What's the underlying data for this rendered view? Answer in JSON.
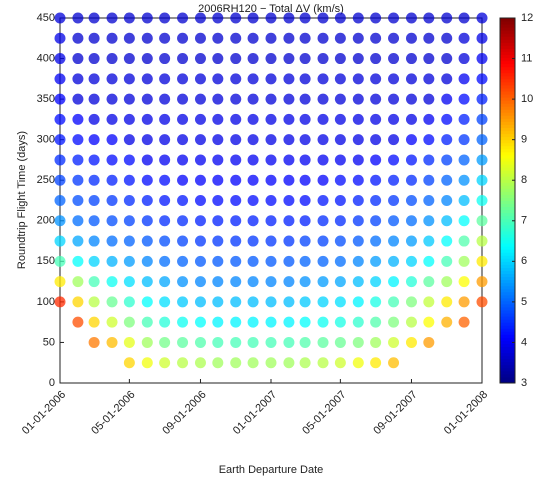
{
  "chart_data": {
    "type": "heatmap-scatter",
    "title": "2006RH120 − Total ΔV (km/s)",
    "x_label": "Earth Departure Date",
    "y_label": "Roundtrip Flight Time (days)",
    "colormap": "jet",
    "x": [
      "2006-01-01",
      "2006-02-01",
      "2006-03-01",
      "2006-04-01",
      "2006-05-01",
      "2006-06-01",
      "2006-07-01",
      "2006-08-01",
      "2006-09-01",
      "2006-10-01",
      "2006-11-01",
      "2006-12-01",
      "2007-01-01",
      "2007-02-01",
      "2007-03-01",
      "2007-04-01",
      "2007-05-01",
      "2007-06-01",
      "2007-07-01",
      "2007-08-01",
      "2007-09-01",
      "2007-10-01",
      "2007-11-01",
      "2007-12-01",
      "2008-01-01"
    ],
    "y": [
      25,
      50,
      75,
      100,
      125,
      150,
      175,
      200,
      225,
      250,
      275,
      300,
      325,
      350,
      375,
      400,
      425,
      450
    ],
    "z": [
      [
        null,
        null,
        null,
        null,
        9.0,
        8.5,
        8.2,
        8.0,
        7.9,
        7.8,
        7.8,
        7.8,
        7.8,
        7.8,
        7.9,
        8.0,
        8.2,
        8.5,
        8.8,
        9.2,
        null,
        null,
        null,
        null,
        null
      ],
      [
        null,
        null,
        9.8,
        9.2,
        8.4,
        7.8,
        7.4,
        7.2,
        7.1,
        7.0,
        7.0,
        7.0,
        7.0,
        7.0,
        7.1,
        7.2,
        7.3,
        7.5,
        7.8,
        8.2,
        8.8,
        9.5,
        null,
        null,
        null
      ],
      [
        null,
        10.2,
        9.0,
        8.2,
        7.5,
        7.0,
        6.7,
        6.5,
        6.4,
        6.3,
        6.3,
        6.3,
        6.3,
        6.3,
        6.4,
        6.5,
        6.6,
        6.8,
        7.1,
        7.5,
        8.0,
        8.6,
        9.3,
        10.0,
        null
      ],
      [
        10.5,
        9.0,
        8.0,
        7.3,
        6.8,
        6.4,
        6.1,
        5.9,
        5.8,
        5.8,
        5.8,
        5.8,
        5.8,
        5.8,
        5.9,
        6.0,
        6.1,
        6.3,
        6.6,
        7.0,
        7.5,
        8.1,
        8.8,
        9.5,
        10.2
      ],
      [
        8.8,
        7.8,
        7.0,
        6.5,
        6.1,
        5.8,
        5.6,
        5.4,
        5.3,
        5.3,
        5.3,
        5.3,
        5.3,
        5.3,
        5.4,
        5.5,
        5.6,
        5.8,
        6.0,
        6.3,
        6.7,
        7.2,
        7.8,
        8.6,
        9.5
      ],
      [
        7.0,
        6.4,
        6.0,
        5.7,
        5.5,
        5.3,
        5.1,
        5.0,
        4.9,
        4.9,
        4.9,
        4.9,
        4.9,
        4.9,
        5.0,
        5.0,
        5.1,
        5.3,
        5.5,
        5.7,
        6.0,
        6.4,
        7.0,
        7.8,
        8.8
      ],
      [
        6.0,
        5.6,
        5.3,
        5.1,
        5.0,
        4.9,
        4.8,
        4.7,
        4.6,
        4.6,
        4.6,
        4.6,
        4.6,
        4.6,
        4.7,
        4.7,
        4.8,
        4.9,
        5.1,
        5.3,
        5.5,
        5.9,
        6.4,
        7.1,
        8.0
      ],
      [
        5.4,
        5.1,
        4.9,
        4.8,
        4.7,
        4.6,
        4.5,
        4.5,
        4.4,
        4.4,
        4.4,
        4.4,
        4.4,
        4.4,
        4.4,
        4.5,
        4.5,
        4.6,
        4.7,
        4.9,
        5.1,
        5.4,
        5.8,
        6.4,
        7.2
      ],
      [
        5.0,
        4.8,
        4.7,
        4.6,
        4.5,
        4.4,
        4.3,
        4.3,
        4.2,
        4.2,
        4.2,
        4.2,
        4.2,
        4.2,
        4.2,
        4.3,
        4.3,
        4.4,
        4.5,
        4.6,
        4.8,
        5.0,
        5.3,
        5.8,
        6.5
      ],
      [
        4.7,
        4.6,
        4.5,
        4.4,
        4.3,
        4.2,
        4.2,
        4.1,
        4.1,
        4.1,
        4.1,
        4.1,
        4.1,
        4.1,
        4.1,
        4.1,
        4.2,
        4.2,
        4.3,
        4.4,
        4.5,
        4.7,
        5.0,
        5.4,
        6.0
      ],
      [
        4.5,
        4.4,
        4.3,
        4.2,
        4.2,
        4.0,
        4.0,
        4.0,
        4.0,
        4.0,
        4.0,
        4.0,
        4.0,
        4.0,
        4.0,
        4.0,
        4.0,
        4.0,
        4.1,
        4.2,
        4.3,
        4.5,
        4.7,
        5.0,
        5.5
      ],
      [
        4.3,
        4.2,
        4.1,
        4.1,
        3.9,
        3.9,
        3.9,
        3.9,
        3.9,
        3.9,
        3.9,
        3.9,
        3.9,
        3.9,
        3.9,
        3.9,
        3.9,
        3.9,
        3.9,
        3.9,
        4.1,
        4.2,
        4.4,
        4.6,
        5.0
      ],
      [
        4.2,
        4.1,
        3.9,
        3.9,
        3.9,
        3.9,
        3.9,
        3.9,
        3.9,
        3.9,
        3.9,
        3.9,
        3.9,
        3.9,
        3.9,
        3.9,
        3.9,
        3.9,
        3.9,
        3.9,
        3.9,
        4.0,
        4.2,
        4.4,
        4.7
      ],
      [
        4.1,
        3.8,
        3.8,
        3.8,
        3.8,
        3.8,
        3.8,
        3.8,
        3.8,
        3.8,
        3.8,
        3.8,
        3.8,
        3.8,
        3.8,
        3.8,
        3.8,
        3.8,
        3.8,
        3.8,
        3.8,
        3.8,
        4.0,
        4.2,
        4.4
      ],
      [
        4.0,
        3.8,
        3.8,
        3.8,
        3.8,
        3.8,
        3.8,
        3.8,
        3.8,
        3.8,
        3.8,
        3.8,
        3.8,
        3.8,
        3.8,
        3.8,
        3.8,
        3.8,
        3.8,
        3.8,
        3.8,
        3.8,
        3.8,
        4.0,
        4.2
      ],
      [
        3.9,
        3.7,
        3.7,
        3.7,
        3.7,
        3.7,
        3.7,
        3.7,
        3.7,
        3.7,
        3.7,
        3.7,
        3.7,
        3.7,
        3.7,
        3.7,
        3.7,
        3.7,
        3.7,
        3.7,
        3.7,
        3.7,
        3.7,
        3.8,
        4.0
      ],
      [
        3.9,
        3.7,
        3.7,
        3.7,
        3.7,
        3.7,
        3.7,
        3.7,
        3.7,
        3.7,
        3.7,
        3.7,
        3.7,
        3.7,
        3.7,
        3.7,
        3.7,
        3.7,
        3.7,
        3.7,
        3.7,
        3.7,
        3.7,
        3.8,
        3.9
      ],
      [
        3.8,
        3.7,
        3.7,
        3.7,
        3.7,
        3.7,
        3.7,
        3.7,
        3.7,
        3.7,
        3.7,
        3.7,
        3.7,
        3.7,
        3.7,
        3.7,
        3.7,
        3.7,
        3.7,
        3.7,
        3.7,
        3.7,
        3.7,
        3.7,
        3.8
      ]
    ],
    "xlim": [
      "2006-01-01",
      "2008-01-01"
    ],
    "xticks": [
      {
        "value": "2006-01-01",
        "label": "01-01-2006"
      },
      {
        "value": "2006-05-01",
        "label": "05-01-2006"
      },
      {
        "value": "2006-09-01",
        "label": "09-01-2006"
      },
      {
        "value": "2007-01-01",
        "label": "01-01-2007"
      },
      {
        "value": "2007-05-01",
        "label": "05-01-2007"
      },
      {
        "value": "2007-09-01",
        "label": "09-01-2007"
      },
      {
        "value": "2008-01-01",
        "label": "01-01-2008"
      }
    ],
    "ylim": [
      0,
      450
    ],
    "yticks": [
      0,
      50,
      100,
      150,
      200,
      250,
      300,
      350,
      400,
      450
    ],
    "zlim": [
      3,
      12
    ],
    "zticks": [
      3,
      4,
      5,
      6,
      7,
      8,
      9,
      10,
      11,
      12
    ]
  }
}
